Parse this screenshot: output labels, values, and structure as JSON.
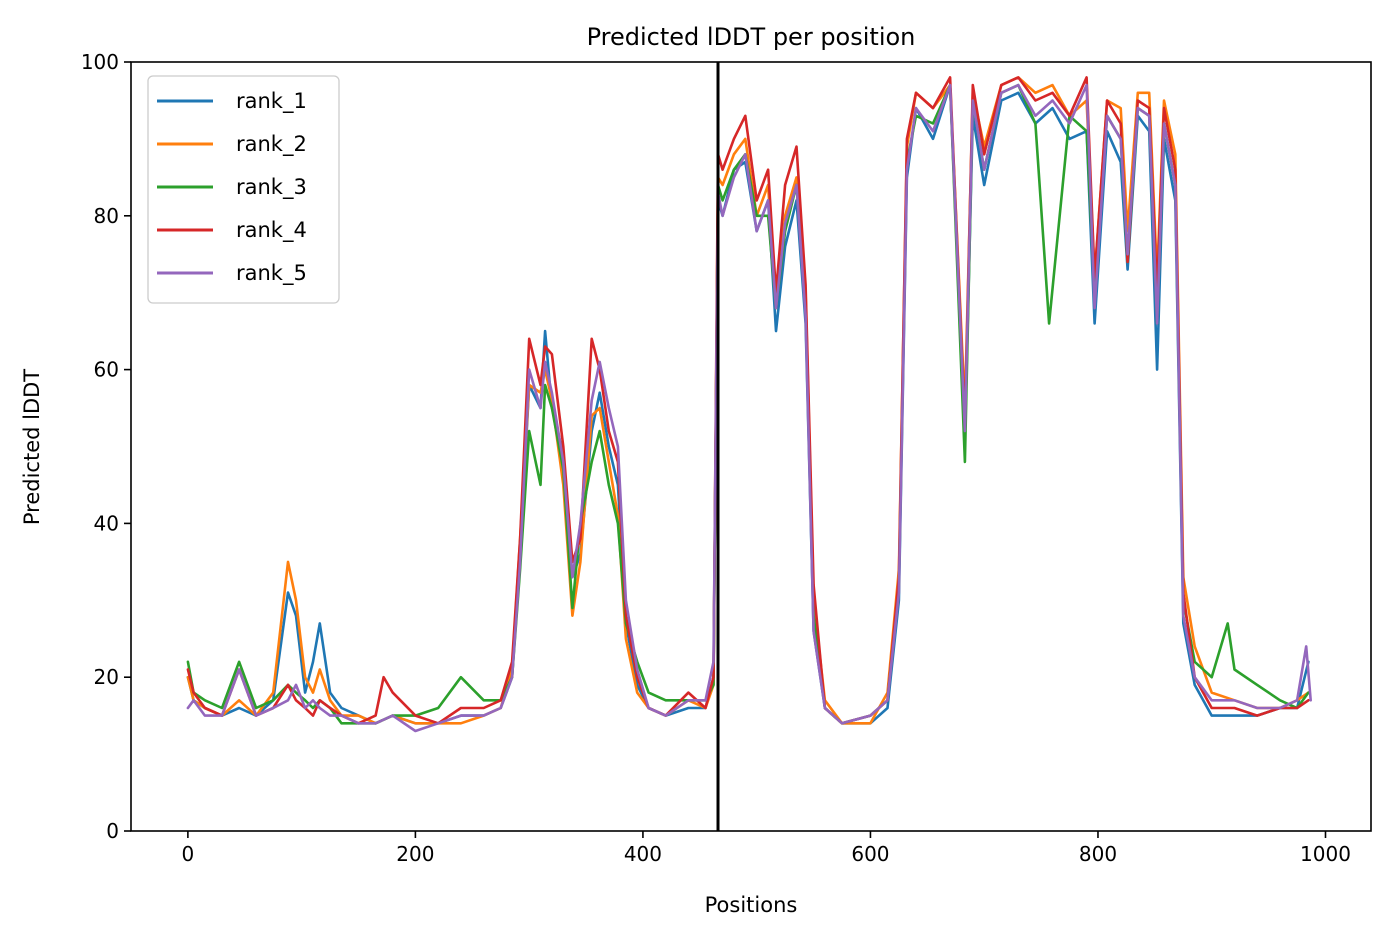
{
  "chart_data": {
    "type": "line",
    "title": "Predicted lDDT per position",
    "xlabel": "Positions",
    "ylabel": "Predicted lDDT",
    "xlim": [
      -50,
      1040
    ],
    "ylim": [
      0,
      100
    ],
    "xticks": [
      0,
      200,
      400,
      600,
      800,
      1000
    ],
    "yticks": [
      0,
      20,
      40,
      60,
      80,
      100
    ],
    "grid": false,
    "legend_position": "top-left",
    "divider_x": 466,
    "divider_color": "#000000",
    "series": [
      {
        "name": "rank_1",
        "color": "#1f77b4",
        "x": [
          0,
          5,
          15,
          30,
          45,
          60,
          75,
          88,
          95,
          103,
          110,
          116,
          125,
          135,
          150,
          165,
          180,
          200,
          220,
          240,
          260,
          275,
          285,
          292,
          300,
          310,
          314,
          320,
          330,
          338,
          345,
          355,
          362,
          370,
          378,
          385,
          395,
          405,
          420,
          440,
          455,
          462,
          466,
          470,
          480,
          490,
          500,
          510,
          517,
          525,
          535,
          543,
          550,
          560,
          575,
          600,
          615,
          625,
          632,
          640,
          655,
          670,
          683,
          690,
          700,
          715,
          730,
          745,
          760,
          775,
          790,
          797,
          808,
          820,
          826,
          835,
          845,
          852,
          858,
          868,
          875,
          885,
          900,
          920,
          940,
          960,
          975,
          985
        ],
        "y": [
          20,
          17,
          16,
          15,
          16,
          15,
          17,
          31,
          28,
          18,
          22,
          27,
          18,
          16,
          15,
          14,
          15,
          14,
          14,
          15,
          15,
          16,
          20,
          36,
          58,
          55,
          65,
          55,
          49,
          33,
          36,
          52,
          57,
          50,
          45,
          27,
          19,
          16,
          15,
          16,
          16,
          20,
          82,
          80,
          86,
          87,
          78,
          82,
          65,
          76,
          82,
          66,
          26,
          16,
          14,
          14,
          16,
          30,
          85,
          94,
          90,
          97,
          51,
          93,
          84,
          95,
          96,
          92,
          94,
          90,
          91,
          66,
          91,
          87,
          73,
          93,
          91,
          60,
          90,
          82,
          27,
          19,
          15,
          15,
          15,
          16,
          16,
          22
        ]
      },
      {
        "name": "rank_2",
        "color": "#ff7f0e",
        "x": [
          0,
          5,
          15,
          30,
          45,
          60,
          75,
          88,
          95,
          103,
          110,
          116,
          125,
          135,
          150,
          165,
          180,
          200,
          220,
          240,
          260,
          275,
          285,
          292,
          300,
          310,
          314,
          320,
          330,
          338,
          345,
          355,
          362,
          370,
          378,
          385,
          395,
          405,
          420,
          440,
          455,
          462,
          466,
          470,
          480,
          490,
          500,
          510,
          517,
          525,
          535,
          543,
          550,
          560,
          575,
          600,
          615,
          625,
          632,
          640,
          655,
          670,
          683,
          690,
          700,
          715,
          730,
          745,
          760,
          775,
          790,
          797,
          808,
          820,
          826,
          835,
          845,
          852,
          858,
          868,
          875,
          885,
          900,
          920,
          940,
          960,
          975,
          985
        ],
        "y": [
          20,
          17,
          16,
          15,
          17,
          15,
          18,
          35,
          30,
          20,
          18,
          21,
          17,
          15,
          15,
          14,
          15,
          14,
          14,
          14,
          15,
          16,
          21,
          38,
          58,
          57,
          60,
          56,
          45,
          28,
          35,
          54,
          55,
          48,
          41,
          25,
          18,
          16,
          15,
          17,
          16,
          19,
          85,
          84,
          88,
          90,
          80,
          84,
          68,
          80,
          85,
          70,
          30,
          17,
          14,
          14,
          18,
          34,
          89,
          96,
          94,
          97,
          55,
          96,
          89,
          97,
          98,
          96,
          97,
          93,
          95,
          72,
          95,
          94,
          78,
          96,
          96,
          72,
          95,
          88,
          33,
          24,
          18,
          17,
          16,
          16,
          17,
          18
        ]
      },
      {
        "name": "rank_3",
        "color": "#2ca02c",
        "x": [
          0,
          5,
          15,
          30,
          45,
          60,
          75,
          88,
          95,
          103,
          110,
          116,
          125,
          135,
          150,
          165,
          180,
          200,
          220,
          240,
          260,
          275,
          285,
          292,
          300,
          310,
          314,
          320,
          330,
          338,
          345,
          355,
          362,
          370,
          378,
          385,
          395,
          405,
          420,
          440,
          455,
          462,
          466,
          470,
          480,
          490,
          500,
          510,
          517,
          525,
          535,
          543,
          550,
          560,
          575,
          600,
          615,
          625,
          632,
          640,
          655,
          670,
          683,
          690,
          700,
          715,
          730,
          745,
          757,
          775,
          790,
          797,
          808,
          820,
          826,
          835,
          845,
          852,
          858,
          868,
          875,
          885,
          900,
          914,
          920,
          940,
          960,
          975,
          985
        ],
        "y": [
          22,
          18,
          17,
          16,
          22,
          16,
          17,
          19,
          18,
          17,
          16,
          17,
          16,
          14,
          14,
          14,
          15,
          15,
          16,
          20,
          17,
          17,
          20,
          34,
          52,
          45,
          58,
          55,
          47,
          29,
          40,
          48,
          52,
          45,
          40,
          27,
          22,
          18,
          17,
          17,
          17,
          19,
          84,
          82,
          86,
          88,
          80,
          80,
          68,
          78,
          84,
          68,
          28,
          16,
          14,
          15,
          17,
          32,
          87,
          93,
          92,
          97,
          48,
          95,
          86,
          96,
          97,
          92,
          66,
          93,
          91,
          70,
          93,
          90,
          74,
          94,
          93,
          66,
          92,
          84,
          30,
          22,
          20,
          27,
          21,
          19,
          17,
          16,
          18
        ]
      },
      {
        "name": "rank_4",
        "color": "#d62728",
        "x": [
          0,
          5,
          15,
          30,
          45,
          60,
          75,
          88,
          95,
          103,
          110,
          116,
          125,
          135,
          150,
          165,
          172,
          180,
          200,
          220,
          240,
          260,
          275,
          285,
          292,
          300,
          310,
          314,
          320,
          330,
          338,
          345,
          355,
          362,
          370,
          378,
          385,
          395,
          405,
          420,
          440,
          455,
          462,
          466,
          470,
          480,
          490,
          500,
          510,
          517,
          525,
          535,
          543,
          550,
          560,
          575,
          600,
          615,
          625,
          632,
          640,
          655,
          670,
          683,
          690,
          700,
          715,
          730,
          745,
          760,
          775,
          790,
          797,
          808,
          820,
          826,
          835,
          845,
          852,
          858,
          868,
          875,
          885,
          900,
          920,
          940,
          960,
          975,
          985
        ],
        "y": [
          21,
          18,
          16,
          15,
          21,
          15,
          16,
          19,
          17,
          16,
          15,
          17,
          16,
          15,
          14,
          15,
          20,
          18,
          15,
          14,
          16,
          16,
          17,
          22,
          38,
          64,
          58,
          63,
          62,
          50,
          35,
          38,
          64,
          60,
          52,
          48,
          28,
          20,
          16,
          15,
          18,
          16,
          20,
          88,
          86,
          90,
          93,
          82,
          86,
          70,
          84,
          89,
          71,
          32,
          16,
          14,
          15,
          17,
          33,
          90,
          96,
          94,
          98,
          53,
          97,
          88,
          97,
          98,
          95,
          96,
          93,
          98,
          72,
          95,
          92,
          74,
          95,
          94,
          70,
          94,
          86,
          31,
          20,
          16,
          16,
          15,
          16,
          16,
          17
        ]
      },
      {
        "name": "rank_5",
        "color": "#9467bd",
        "x": [
          0,
          5,
          15,
          30,
          45,
          60,
          75,
          88,
          95,
          103,
          110,
          116,
          125,
          135,
          150,
          165,
          180,
          200,
          220,
          240,
          260,
          275,
          285,
          292,
          300,
          310,
          314,
          320,
          330,
          338,
          345,
          355,
          362,
          370,
          378,
          385,
          395,
          405,
          420,
          440,
          455,
          462,
          466,
          470,
          480,
          490,
          500,
          510,
          517,
          525,
          535,
          543,
          550,
          560,
          575,
          600,
          615,
          625,
          632,
          640,
          655,
          670,
          683,
          690,
          700,
          715,
          730,
          745,
          760,
          775,
          790,
          797,
          808,
          820,
          826,
          835,
          845,
          852,
          858,
          868,
          875,
          885,
          900,
          920,
          940,
          960,
          975,
          983,
          987
        ],
        "y": [
          16,
          17,
          15,
          15,
          21,
          15,
          16,
          17,
          19,
          16,
          17,
          16,
          15,
          15,
          14,
          14,
          15,
          13,
          14,
          15,
          15,
          16,
          20,
          35,
          60,
          55,
          61,
          57,
          48,
          33,
          40,
          56,
          61,
          55,
          50,
          30,
          21,
          16,
          15,
          17,
          17,
          22,
          83,
          80,
          85,
          88,
          78,
          82,
          68,
          79,
          84,
          67,
          26,
          16,
          14,
          15,
          17,
          31,
          86,
          94,
          91,
          97,
          52,
          95,
          86,
          96,
          97,
          93,
          95,
          92,
          97,
          68,
          93,
          90,
          75,
          94,
          93,
          66,
          92,
          84,
          28,
          20,
          17,
          17,
          16,
          16,
          17,
          24,
          17
        ]
      }
    ]
  }
}
